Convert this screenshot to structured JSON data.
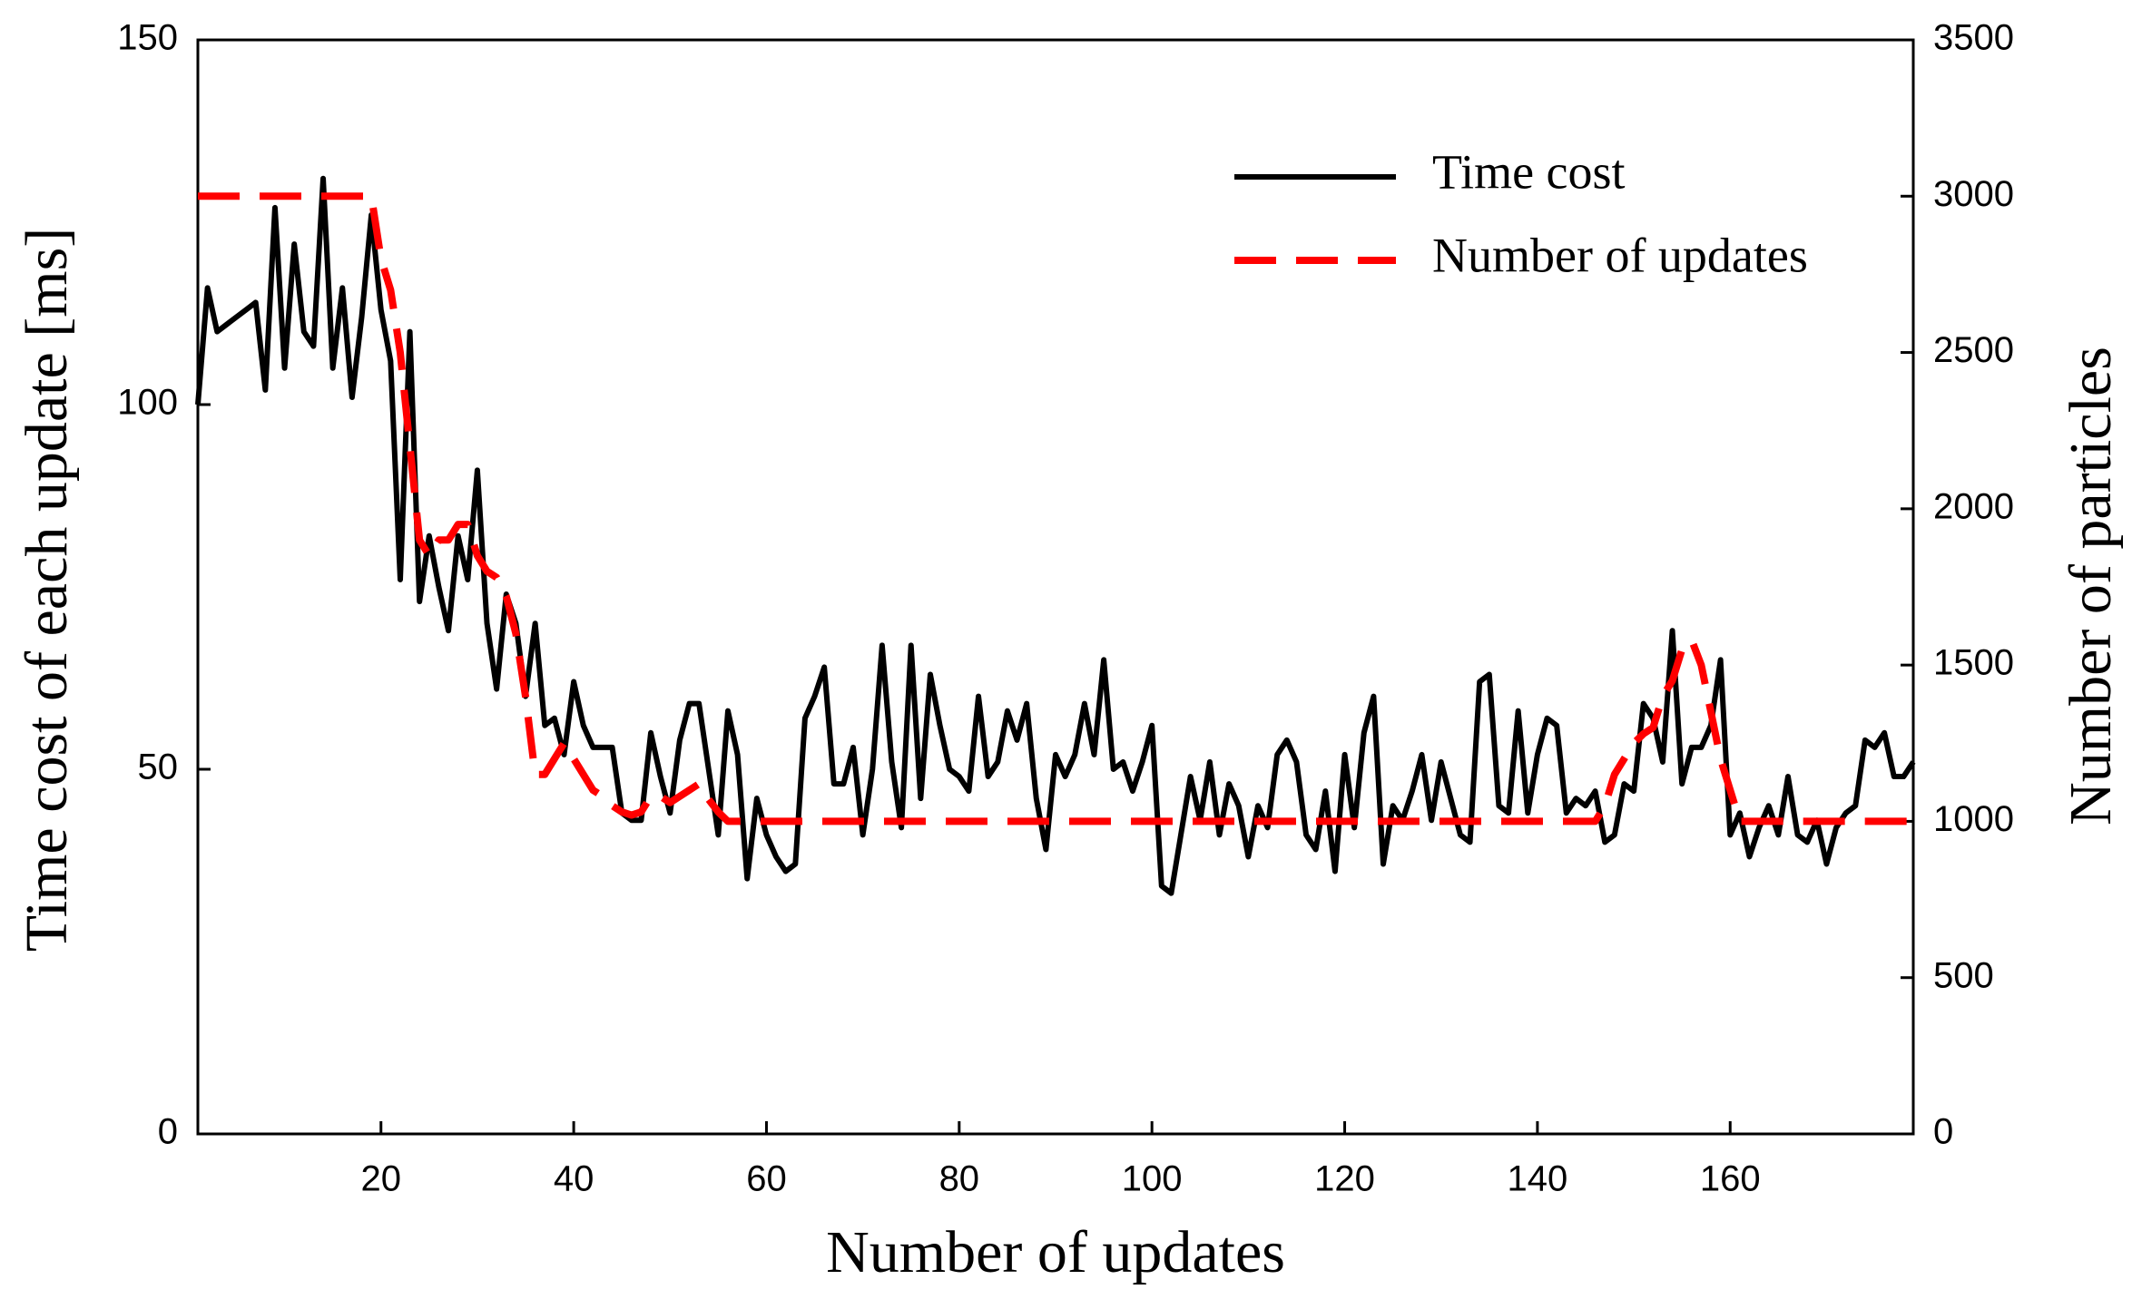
{
  "chart_data": {
    "type": "line",
    "x_label": "Number of updates",
    "y_label": "Time cost of each update [ms]",
    "y2_label": "Number of particles",
    "x": [
      1,
      2,
      3,
      4,
      5,
      6,
      7,
      8,
      9,
      10,
      11,
      12,
      13,
      14,
      15,
      16,
      17,
      18,
      19,
      20,
      21,
      22,
      23,
      24,
      25,
      26,
      27,
      28,
      29,
      30,
      31,
      32,
      33,
      34,
      35,
      36,
      37,
      38,
      39,
      40,
      41,
      42,
      43,
      44,
      45,
      46,
      47,
      48,
      49,
      50,
      51,
      52,
      53,
      54,
      55,
      56,
      57,
      58,
      59,
      60,
      61,
      62,
      63,
      64,
      65,
      66,
      67,
      68,
      69,
      70,
      71,
      72,
      73,
      74,
      75,
      76,
      77,
      78,
      79,
      80,
      81,
      82,
      83,
      84,
      85,
      86,
      87,
      88,
      89,
      90,
      91,
      92,
      93,
      94,
      95,
      96,
      97,
      98,
      99,
      100,
      101,
      102,
      103,
      104,
      105,
      106,
      107,
      108,
      109,
      110,
      111,
      112,
      113,
      114,
      115,
      116,
      117,
      118,
      119,
      120,
      121,
      122,
      123,
      124,
      125,
      126,
      127,
      128,
      129,
      130,
      131,
      132,
      133,
      134,
      135,
      136,
      137,
      138,
      139,
      140,
      141,
      142,
      143,
      144,
      145,
      146,
      147,
      148,
      149,
      150,
      151,
      152,
      153,
      154,
      155,
      156,
      157,
      158,
      159,
      160,
      161,
      162,
      163,
      164,
      165,
      166,
      167,
      168,
      169,
      170,
      171,
      172,
      173,
      174,
      175,
      176,
      177,
      178,
      179
    ],
    "series": [
      {
        "name": "Time cost",
        "color": "#000000",
        "linestyle": "solid",
        "values": [
          100,
          116,
          110,
          111,
          112,
          113,
          114,
          102,
          127,
          105,
          122,
          110,
          108,
          131,
          105,
          116,
          101,
          112,
          126,
          113,
          106,
          76,
          110,
          73,
          82,
          75,
          69,
          82,
          76,
          91,
          70,
          61,
          74,
          70,
          60,
          70,
          56,
          57,
          52,
          62,
          56,
          53,
          53,
          53,
          44,
          43,
          43,
          55,
          49,
          44,
          54,
          59,
          59,
          50,
          41,
          58,
          52,
          35,
          46,
          41,
          38,
          36,
          37,
          57,
          60,
          64,
          48,
          48,
          53,
          41,
          50,
          67,
          51,
          42,
          67,
          46,
          63,
          56,
          50,
          49,
          47,
          60,
          49,
          51,
          58,
          54,
          59,
          46,
          39,
          52,
          49,
          52,
          59,
          52,
          65,
          50,
          51,
          47,
          51,
          56,
          34,
          33,
          41,
          49,
          43,
          51,
          41,
          48,
          45,
          38,
          45,
          42,
          52,
          54,
          51,
          41,
          39,
          47,
          36,
          52,
          42,
          55,
          60,
          37,
          45,
          43,
          47,
          52,
          43,
          51,
          46,
          41,
          40,
          62,
          63,
          45,
          44,
          58,
          44,
          52,
          57,
          56,
          44,
          46,
          45,
          47,
          40,
          41,
          48,
          47,
          59,
          57,
          51,
          69,
          48,
          53,
          53,
          56,
          65,
          41,
          44,
          38,
          42,
          45,
          41,
          49,
          41,
          40,
          43,
          37,
          42,
          44,
          45,
          54,
          53,
          55,
          49,
          49,
          51
        ]
      },
      {
        "name": "Number of updates",
        "color": "#ff0000",
        "linestyle": "dashed",
        "axis": "y2",
        "values": [
          3000,
          3000,
          3000,
          3000,
          3000,
          3000,
          3000,
          3000,
          3000,
          3000,
          3000,
          3000,
          3000,
          3000,
          3000,
          3000,
          3000,
          3000,
          3000,
          2800,
          2700,
          2500,
          2200,
          1900,
          1850,
          1900,
          1900,
          1950,
          1950,
          1850,
          1800,
          1780,
          1720,
          1600,
          1400,
          1150,
          1150,
          1200,
          1250,
          1200,
          1150,
          1100,
          1080,
          1050,
          1030,
          1020,
          1030,
          1080,
          1080,
          1060,
          1080,
          1100,
          1120,
          1070,
          1030,
          1000,
          1000,
          1000,
          1000,
          1000,
          1000,
          1000,
          1000,
          1000,
          1000,
          1000,
          1000,
          1000,
          1000,
          1000,
          1000,
          1000,
          1000,
          1000,
          1000,
          1000,
          1000,
          1000,
          1000,
          1000,
          1000,
          1000,
          1000,
          1000,
          1000,
          1000,
          1000,
          1000,
          1000,
          1000,
          1000,
          1000,
          1000,
          1000,
          1000,
          1000,
          1000,
          1000,
          1000,
          1000,
          1000,
          1000,
          1000,
          1000,
          1000,
          1000,
          1000,
          1000,
          1000,
          1000,
          1000,
          1000,
          1000,
          1000,
          1000,
          1000,
          1000,
          1000,
          1000,
          1000,
          1000,
          1000,
          1000,
          1000,
          1000,
          1000,
          1000,
          1000,
          1000,
          1000,
          1000,
          1000,
          1000,
          1000,
          1000,
          1000,
          1000,
          1000,
          1000,
          1000,
          1000,
          1000,
          1000,
          1000,
          1000,
          1000,
          1050,
          1150,
          1200,
          1250,
          1280,
          1300,
          1400,
          1450,
          1550,
          1580,
          1500,
          1350,
          1200,
          1100,
          1000,
          1000,
          1000,
          1000,
          1000,
          1000,
          1000,
          1000,
          1000,
          1000,
          1000,
          1000,
          1000,
          1000,
          1000,
          1000,
          1000,
          1000,
          1000
        ]
      }
    ],
    "xlim": [
      1,
      179
    ],
    "xticks": [
      20,
      40,
      60,
      80,
      100,
      120,
      140,
      160
    ],
    "ylim": [
      0,
      150
    ],
    "yticks": [
      0,
      50,
      100,
      150
    ],
    "y2lim": [
      0,
      3500
    ],
    "y2ticks": [
      0,
      500,
      1000,
      1500,
      2000,
      2500,
      3000,
      3500
    ],
    "grid": false,
    "legend": "upper right"
  }
}
